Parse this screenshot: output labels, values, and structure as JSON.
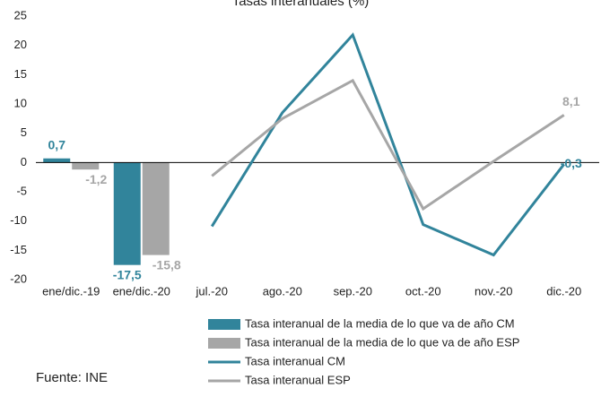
{
  "chart_data": {
    "type": "combo",
    "title": "Tasas interanuales (%)",
    "source": "Fuente: INE",
    "categories": [
      "ene/dic.-19",
      "ene/dic.-20",
      "jul.-20",
      "ago.-20",
      "sep.-20",
      "oct.-20",
      "nov.-20",
      "dic.-20"
    ],
    "ylim": [
      -20,
      25
    ],
    "yticks": [
      -20,
      -15,
      -10,
      -5,
      0,
      5,
      10,
      15,
      20,
      25
    ],
    "series": [
      {
        "name": "Tasa interanual de la media de lo que va de año CM",
        "type": "bar",
        "color": "#31849b",
        "values": [
          0.7,
          -17.5,
          null,
          null,
          null,
          null,
          null,
          null
        ],
        "value_labels": [
          "0,7",
          "-17,5",
          null,
          null,
          null,
          null,
          null,
          null
        ]
      },
      {
        "name": "Tasa interanual de la media de lo que va de año ESP",
        "type": "bar",
        "color": "#a6a6a6",
        "values": [
          -1.2,
          -15.8,
          null,
          null,
          null,
          null,
          null,
          null
        ],
        "value_labels": [
          "-1,2",
          "-15,8",
          null,
          null,
          null,
          null,
          null,
          null
        ]
      },
      {
        "name": "Tasa interanual CM",
        "type": "line",
        "color": "#31849b",
        "values": [
          null,
          null,
          -10.9,
          8.5,
          21.8,
          -10.6,
          -15.8,
          -0.3
        ],
        "value_labels": [
          null,
          null,
          null,
          null,
          null,
          null,
          null,
          "-0,3"
        ]
      },
      {
        "name": "Tasa interanual ESP",
        "type": "line",
        "color": "#a6a6a6",
        "values": [
          null,
          null,
          -2.3,
          7.5,
          14.0,
          -7.9,
          0.2,
          8.1
        ],
        "value_labels": [
          null,
          null,
          null,
          null,
          null,
          null,
          null,
          "8,1"
        ]
      }
    ]
  }
}
